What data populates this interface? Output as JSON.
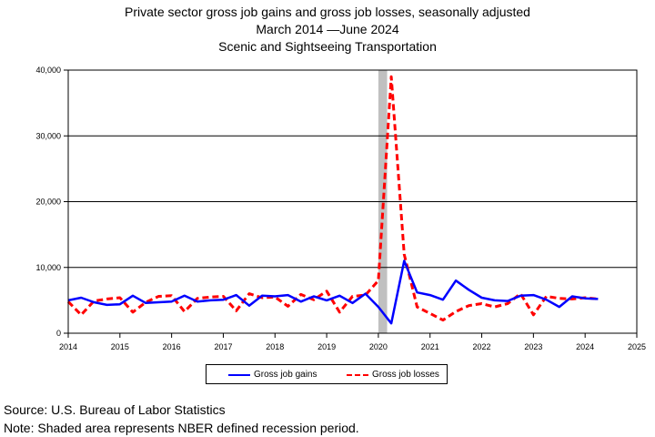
{
  "titles": {
    "line1": "Private sector gross job gains and gross job losses, seasonally adjusted",
    "line2": "March 2014  —June 2024",
    "line3": "Scenic and Sightseeing Transportation"
  },
  "notes": {
    "source": "Source: U.S. Bureau of Labor Statistics",
    "note": "Note: Shaded area represents NBER defined recession period."
  },
  "colors": {
    "gains": "#0000ff",
    "losses": "#ff0000",
    "recession": "#c0c0c0"
  },
  "chart_data": {
    "type": "line",
    "title": "Private sector gross job gains and gross job losses, seasonally adjusted",
    "subtitle": "March 2014 — June 2024 — Scenic and Sightseeing Transportation",
    "xlabel": "",
    "ylabel": "",
    "xlim": [
      2014,
      2025
    ],
    "ylim": [
      0,
      40000
    ],
    "x_ticks": [
      "2014",
      "2015",
      "2016",
      "2017",
      "2018",
      "2019",
      "2020",
      "2021",
      "2022",
      "2023",
      "2024",
      "2025"
    ],
    "y_ticks": [
      "0",
      "10,000",
      "20,000",
      "30,000",
      "40,000"
    ],
    "grid": "horizontal",
    "legend_position": "bottom",
    "recession": {
      "start": 2020.0,
      "end": 2020.17
    },
    "x": [
      2014.0,
      2014.25,
      2014.5,
      2014.75,
      2015.0,
      2015.25,
      2015.5,
      2015.75,
      2016.0,
      2016.25,
      2016.5,
      2016.75,
      2017.0,
      2017.25,
      2017.5,
      2017.75,
      2018.0,
      2018.25,
      2018.5,
      2018.75,
      2019.0,
      2019.25,
      2019.5,
      2019.75,
      2020.0,
      2020.25,
      2020.5,
      2020.75,
      2021.0,
      2021.25,
      2021.5,
      2021.75,
      2022.0,
      2022.25,
      2022.5,
      2022.75,
      2023.0,
      2023.25,
      2023.5,
      2023.75,
      2024.0,
      2024.25
    ],
    "series": [
      {
        "name": "Gross job gains",
        "values": [
          5000,
          5400,
          4700,
          4300,
          4400,
          5700,
          4600,
          4700,
          4800,
          5700,
          4800,
          5000,
          5100,
          5800,
          4200,
          5700,
          5600,
          5800,
          4800,
          5600,
          5000,
          5700,
          4600,
          6000,
          4000,
          1500,
          11000,
          6200,
          5800,
          5100,
          8000,
          6600,
          5400,
          5000,
          4900,
          5700,
          5800,
          5100,
          4000,
          5600,
          5300,
          5200
        ],
        "style": "solid"
      },
      {
        "name": "Gross job losses",
        "values": [
          4800,
          2800,
          4900,
          5200,
          5400,
          3200,
          4700,
          5600,
          5700,
          3300,
          5300,
          5500,
          5600,
          3400,
          6000,
          5400,
          5500,
          4100,
          5900,
          5100,
          6400,
          3200,
          5600,
          5800,
          8000,
          39000,
          12000,
          4000,
          3000,
          2000,
          3300,
          4200,
          4500,
          4000,
          4500,
          6000,
          2800,
          5600,
          5300,
          5200,
          5400,
          5200
        ],
        "style": "dashed"
      }
    ]
  }
}
